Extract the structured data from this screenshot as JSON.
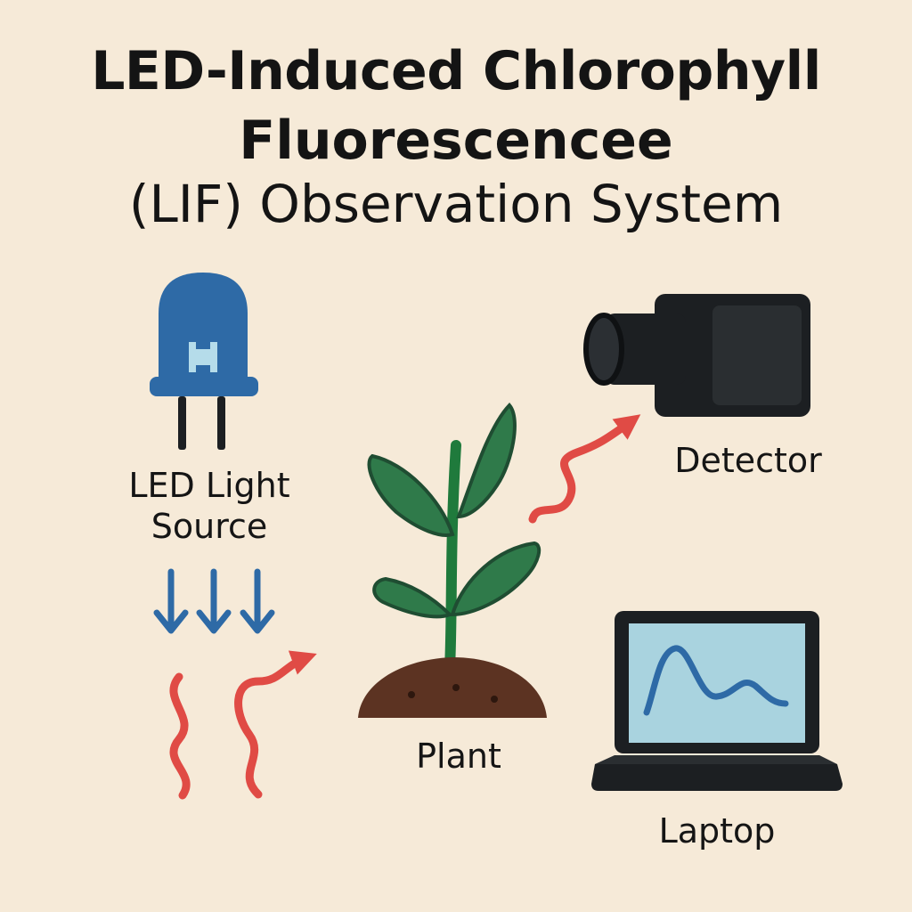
{
  "title": {
    "line1": "LED-Induced Chlorophyll",
    "line2": "Fluorescencee",
    "line3": "(LIF) Observation System"
  },
  "components": {
    "led": {
      "label_line1": "LED Light",
      "label_line2": "Source",
      "icon": "led-icon"
    },
    "detector": {
      "label": "Detector",
      "icon": "camera-detector-icon"
    },
    "plant": {
      "label": "Plant",
      "icon": "plant-seedling-icon"
    },
    "laptop": {
      "label": "Laptop",
      "icon": "laptop-icon"
    }
  },
  "colors": {
    "background": "#f6ead8",
    "led_blue": "#2e6aa6",
    "excitation_arrow": "#2e6aa6",
    "fluorescence_wave": "#e04b45",
    "leaf_green": "#2f7a4a",
    "soil_brown": "#5c3322",
    "device_dark": "#1c1f22",
    "screen": "#a9d3df"
  }
}
